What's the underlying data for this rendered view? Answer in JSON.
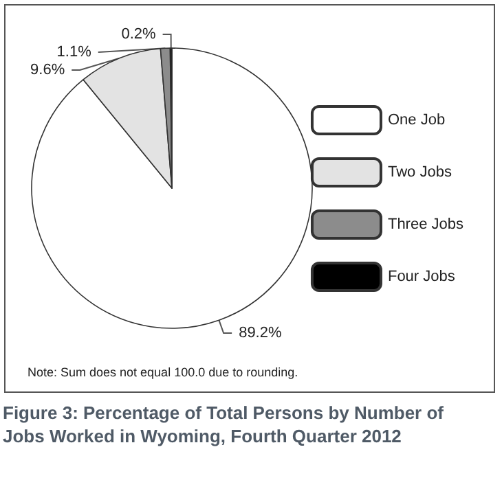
{
  "chart_data": {
    "type": "pie",
    "title": "Figure 3: Percentage of Total Persons by Number of Jobs Worked in Wyoming, Fourth Quarter 2012",
    "categories": [
      "One Job",
      "Two Jobs",
      "Three Jobs",
      "Four Jobs"
    ],
    "values": [
      89.2,
      9.6,
      1.1,
      0.2
    ],
    "value_labels": [
      "89.2%",
      "9.6%",
      "1.1%",
      "0.2%"
    ],
    "colors": [
      "#ffffff",
      "#e3e3e3",
      "#8c8c8c",
      "#000000"
    ],
    "legend": "right",
    "annotations": [
      "Note: Sum does not equal 100.0 due to rounding."
    ]
  }
}
